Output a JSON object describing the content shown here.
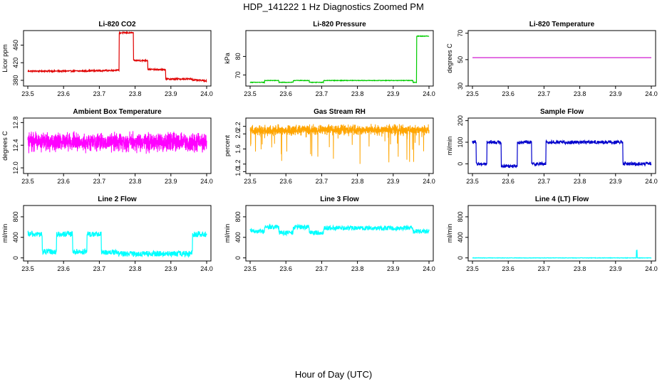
{
  "figure": {
    "title": "HDP_141222  1 Hz Diagnostics Zoomed PM",
    "xlabel": "Hour of Day (UTC)"
  },
  "chart_data": [
    {
      "type": "line",
      "title": "Li-820 CO2",
      "ylabel": "Licor ppm",
      "color": "#e00000",
      "xlim": [
        23.5,
        24.0
      ],
      "ylim": [
        367,
        493
      ],
      "xticks": [
        "23.5",
        "23.6",
        "23.7",
        "23.8",
        "23.9",
        "24.0"
      ],
      "yticks": [
        380,
        420,
        460
      ],
      "ytick_labels": [
        "380",
        "420",
        "460"
      ],
      "noise": 1.5,
      "x": [
        23.5,
        23.5,
        23.54,
        23.54,
        23.54,
        23.625,
        23.625,
        23.625,
        23.71,
        23.71,
        23.71,
        23.755,
        23.755,
        23.795,
        23.795,
        23.835,
        23.835,
        23.885,
        23.885,
        23.96,
        23.96,
        23.96,
        24.0
      ],
      "y": [
        400,
        401,
        401,
        413,
        401,
        401,
        410,
        401,
        402,
        413,
        402,
        403,
        488,
        488,
        425,
        425,
        405,
        404,
        383,
        383,
        393,
        381,
        379
      ]
    },
    {
      "type": "line",
      "title": "Li-820 Pressure",
      "ylabel": "kPa",
      "color": "#00cc00",
      "xlim": [
        23.5,
        24.0
      ],
      "ylim": [
        64,
        94
      ],
      "xticks": [
        "23.5",
        "23.6",
        "23.7",
        "23.8",
        "23.9",
        "24.0"
      ],
      "yticks": [
        70,
        80
      ],
      "ytick_labels": [
        "70",
        "80"
      ],
      "noise": 0.15,
      "x": [
        23.5,
        23.54,
        23.54,
        23.58,
        23.58,
        23.62,
        23.62,
        23.665,
        23.665,
        23.705,
        23.705,
        23.955,
        23.955,
        23.965,
        23.965,
        24.0
      ],
      "y": [
        66.0,
        66.0,
        67.0,
        67.0,
        66.0,
        66.0,
        67.0,
        67.0,
        66.0,
        66.0,
        67.0,
        67.0,
        66.0,
        66.0,
        91.0,
        91.0
      ]
    },
    {
      "type": "line",
      "title": "Li-820 Temperature",
      "ylabel": "degrees C",
      "color": "#cc00cc",
      "xlim": [
        23.5,
        24.0
      ],
      "ylim": [
        30,
        72
      ],
      "xticks": [
        "23.5",
        "23.6",
        "23.7",
        "23.8",
        "23.9",
        "24.0"
      ],
      "yticks": [
        30,
        50,
        70
      ],
      "ytick_labels": [
        "30",
        "50",
        "70"
      ],
      "noise": 0,
      "x": [
        23.5,
        24.0
      ],
      "y": [
        51.5,
        51.5
      ]
    },
    {
      "type": "line",
      "title": "Ambient Box Temperature",
      "ylabel": "degrees C",
      "color": "#ff00ff",
      "xlim": [
        23.5,
        24.0
      ],
      "ylim": [
        11.9,
        12.88
      ],
      "xticks": [
        "23.5",
        "23.6",
        "23.7",
        "23.8",
        "23.9",
        "24.0"
      ],
      "yticks": [
        12.0,
        12.4,
        12.8
      ],
      "ytick_labels": [
        "12.0",
        "12.4",
        "12.8"
      ],
      "noise": 0.15,
      "dense": true,
      "x": [
        23.5,
        24.0
      ],
      "y": [
        12.45,
        12.45
      ]
    },
    {
      "type": "line",
      "title": "Gas Stream RH",
      "ylabel": "percent",
      "color": "#ffa500",
      "xlim": [
        23.5,
        24.0
      ],
      "ylim": [
        0.95,
        2.42
      ],
      "xticks": [
        "23.5",
        "23.6",
        "23.7",
        "23.8",
        "23.9",
        "24.0"
      ],
      "yticks": [
        1.0,
        1.2,
        1.6,
        2.0,
        2.2
      ],
      "ytick_labels": [
        "1.0",
        "1.2",
        "1.6",
        "2.0",
        "2.2"
      ],
      "noise": 0.12,
      "dense": true,
      "spikes_down": true,
      "x": [
        23.5,
        24.0
      ],
      "y": [
        2.1,
        2.1
      ]
    },
    {
      "type": "line",
      "title": "Sample Flow",
      "ylabel": "ml/min",
      "color": "#0000cc",
      "xlim": [
        23.5,
        24.0
      ],
      "ylim": [
        -45,
        212
      ],
      "xticks": [
        "23.5",
        "23.6",
        "23.7",
        "23.8",
        "23.9",
        "24.0"
      ],
      "yticks": [
        0,
        100,
        200
      ],
      "ytick_labels": [
        "0",
        "100",
        "200"
      ],
      "noise": 8,
      "x": [
        23.5,
        23.51,
        23.51,
        23.54,
        23.54,
        23.58,
        23.58,
        23.625,
        23.625,
        23.665,
        23.665,
        23.705,
        23.705,
        23.92,
        23.92,
        24.0
      ],
      "y": [
        100,
        100,
        0,
        0,
        100,
        100,
        -10,
        -10,
        100,
        100,
        0,
        0,
        100,
        100,
        0,
        0
      ]
    },
    {
      "type": "line",
      "title": "Line 2 Flow",
      "ylabel": "ml/min",
      "color": "#00ffff",
      "xlim": [
        23.5,
        24.0
      ],
      "ylim": [
        -60,
        1020
      ],
      "xticks": [
        "23.5",
        "23.6",
        "23.7",
        "23.8",
        "23.9",
        "24.0"
      ],
      "yticks": [
        0,
        400,
        800
      ],
      "ytick_labels": [
        "0",
        "400",
        "800"
      ],
      "noise": 55,
      "x": [
        23.5,
        23.54,
        23.54,
        23.58,
        23.58,
        23.625,
        23.625,
        23.665,
        23.665,
        23.705,
        23.705,
        23.75,
        23.75,
        23.955,
        23.955,
        23.96,
        23.96,
        24.0
      ],
      "y": [
        460,
        460,
        120,
        120,
        460,
        460,
        120,
        120,
        460,
        460,
        110,
        110,
        80,
        80,
        110,
        110,
        460,
        460
      ]
    },
    {
      "type": "line",
      "title": "Line 3 Flow",
      "ylabel": "ml/min",
      "color": "#00ffff",
      "xlim": [
        23.5,
        24.0
      ],
      "ylim": [
        -60,
        1020
      ],
      "xticks": [
        "23.5",
        "23.6",
        "23.7",
        "23.8",
        "23.9",
        "24.0"
      ],
      "yticks": [
        0,
        400,
        800
      ],
      "ytick_labels": [
        "0",
        "400",
        "800"
      ],
      "noise": 45,
      "x": [
        23.5,
        23.54,
        23.54,
        23.58,
        23.58,
        23.62,
        23.62,
        23.665,
        23.665,
        23.705,
        23.705,
        23.955,
        23.955,
        24.0
      ],
      "y": [
        520,
        520,
        600,
        600,
        490,
        490,
        600,
        600,
        490,
        490,
        580,
        580,
        520,
        520
      ]
    },
    {
      "type": "line",
      "title": "Line 4 (LT) Flow",
      "ylabel": "ml/min",
      "color": "#00ffff",
      "xlim": [
        23.5,
        24.0
      ],
      "ylim": [
        -60,
        1020
      ],
      "xticks": [
        "23.5",
        "23.6",
        "23.7",
        "23.8",
        "23.9",
        "24.0"
      ],
      "yticks": [
        0,
        400,
        800
      ],
      "ytick_labels": [
        "0",
        "400",
        "800"
      ],
      "noise": 4,
      "x": [
        23.5,
        23.958,
        23.958,
        23.96,
        23.96,
        24.0
      ],
      "y": [
        0,
        0,
        150,
        150,
        0,
        0
      ]
    }
  ]
}
